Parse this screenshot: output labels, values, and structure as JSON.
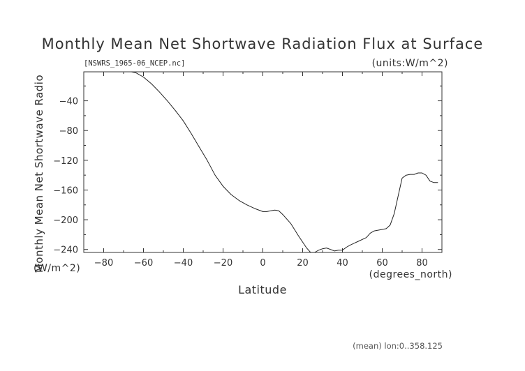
{
  "chart_data": {
    "type": "line",
    "title": "Monthly Mean Net Shortwave Radiation Flux at Surface",
    "subtitle_left": "[NSWRS_1965-06_NCEP.nc]",
    "subtitle_right": "(units:W/m^2)",
    "xlabel": "Latitude",
    "xunits": "(degrees_north)",
    "ylabel": "Monthly Mean Net Shortwave Radio",
    "yunits": "(W/m^2)",
    "footer": "(mean) lon:0..358.125",
    "xlim": [
      -90,
      90
    ],
    "ylim": [
      -244,
      -1
    ],
    "x_ticks": [
      -80,
      -60,
      -40,
      -20,
      0,
      20,
      40,
      60,
      80
    ],
    "y_ticks": [
      -40,
      -80,
      -120,
      -160,
      -200,
      -240
    ],
    "series": [
      {
        "x": [
          -66,
          -64,
          -60,
          -56,
          -52,
          -48,
          -44,
          -40,
          -36,
          -32,
          -28,
          -24,
          -20,
          -16,
          -12,
          -8,
          -4,
          0,
          2,
          4,
          6,
          8,
          10,
          14,
          18,
          22,
          24,
          26,
          28,
          30,
          32,
          34,
          36,
          38,
          40,
          42,
          44,
          48,
          52,
          54,
          56,
          60,
          62,
          64,
          66,
          68,
          70,
          72,
          74,
          76,
          78,
          80,
          82,
          84,
          86,
          88
        ],
        "y": [
          -1,
          -2,
          -8,
          -17,
          -28,
          -40,
          -53,
          -67,
          -84,
          -102,
          -120,
          -140,
          -155,
          -166,
          -174,
          -180,
          -185,
          -189,
          -189,
          -188,
          -187,
          -188,
          -193,
          -205,
          -222,
          -238,
          -245,
          -244,
          -241,
          -239,
          -238,
          -240,
          -242,
          -241,
          -241,
          -237,
          -234,
          -229,
          -224,
          -218,
          -215,
          -213,
          -212,
          -207,
          -192,
          -168,
          -144,
          -140,
          -139,
          -139,
          -137,
          -137,
          -140,
          -148,
          -150,
          -150
        ]
      }
    ]
  }
}
